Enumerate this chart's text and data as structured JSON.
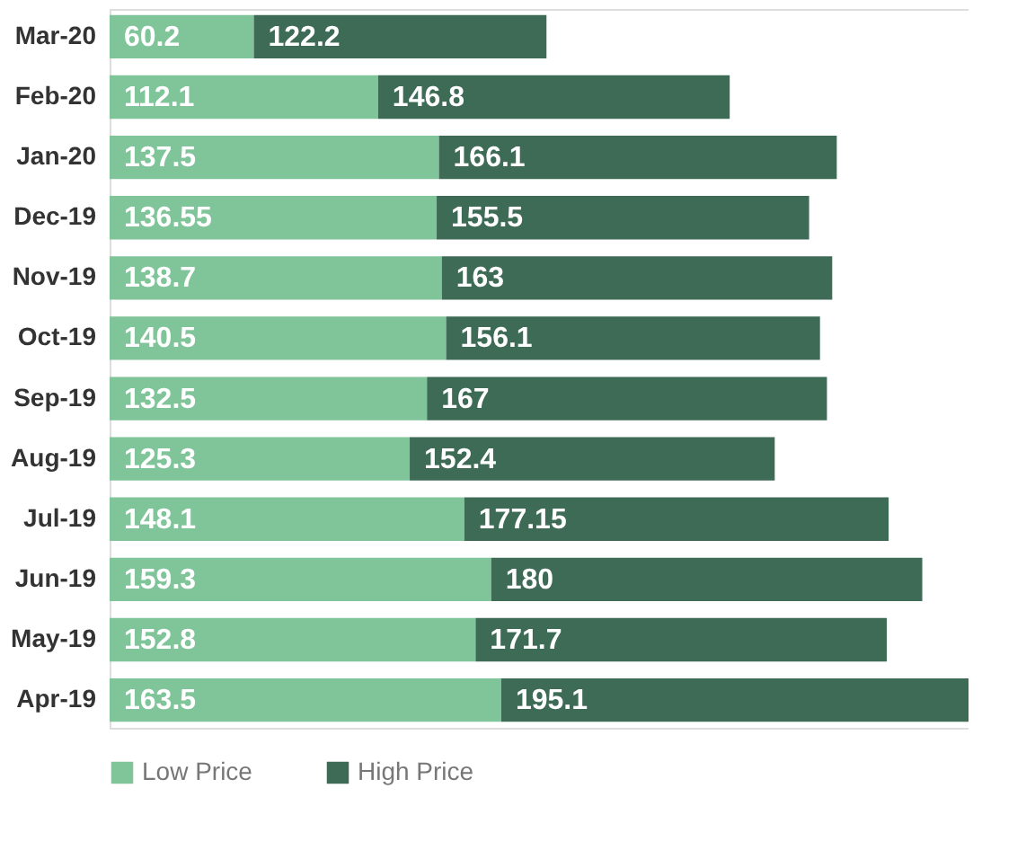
{
  "chart_data": {
    "type": "bar",
    "orientation": "horizontal",
    "stacked": true,
    "data_labels": true,
    "legend": "bottom",
    "grid": false,
    "categories": [
      "Mar-20",
      "Feb-20",
      "Jan-20",
      "Dec-19",
      "Nov-19",
      "Oct-19",
      "Sep-19",
      "Aug-19",
      "Jul-19",
      "Jun-19",
      "May-19",
      "Apr-19"
    ],
    "series": [
      {
        "name": "Low Price",
        "color": "#80c49a",
        "values": [
          60.2,
          112.1,
          137.5,
          136.55,
          138.7,
          140.5,
          132.5,
          125.3,
          148.1,
          159.3,
          152.8,
          163.5
        ]
      },
      {
        "name": "High Price",
        "color": "#3e6b56",
        "values": [
          122.2,
          146.8,
          166.1,
          155.5,
          163,
          156.1,
          167,
          152.4,
          177.15,
          180,
          171.7,
          195.1
        ]
      }
    ]
  }
}
